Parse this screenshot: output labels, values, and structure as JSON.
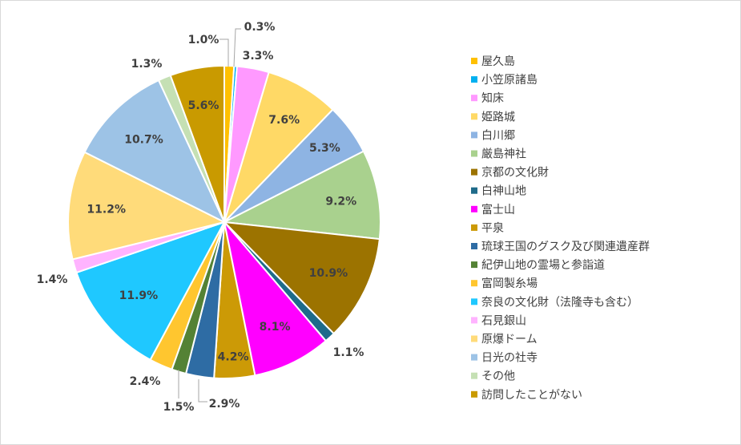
{
  "chart_data": {
    "type": "pie",
    "title": "",
    "legend_position": "right",
    "start_angle_deg": 0,
    "direction": "clockwise",
    "slices": [
      {
        "label": "屋久島",
        "value": 1.0,
        "display": "1.0%",
        "color": "#FFC000"
      },
      {
        "label": "小笠原諸島",
        "value": 0.3,
        "display": "0.3%",
        "color": "#00B0F0"
      },
      {
        "label": "知床",
        "value": 3.3,
        "display": "3.3%",
        "color": "#FF99FF"
      },
      {
        "label": "姫路城",
        "value": 7.6,
        "display": "7.6%",
        "color": "#FFD966"
      },
      {
        "label": "白川郷",
        "value": 5.3,
        "display": "5.3%",
        "color": "#8EB4E3"
      },
      {
        "label": "厳島神社",
        "value": 9.2,
        "display": "9.2%",
        "color": "#A9D18E"
      },
      {
        "label": "京都の文化財",
        "value": 10.9,
        "display": "10.9%",
        "color": "#9C7300"
      },
      {
        "label": "白神山地",
        "value": 1.1,
        "display": "1.1%",
        "color": "#1F6B8A"
      },
      {
        "label": "富士山",
        "value": 8.1,
        "display": "8.1%",
        "color": "#FF00FF"
      },
      {
        "label": "平泉",
        "value": 4.2,
        "display": "4.2%",
        "color": "#CC9A06"
      },
      {
        "label": "琉球王国のグスク及び関連遺産群",
        "value": 2.9,
        "display": "2.9%",
        "color": "#2E6CA4"
      },
      {
        "label": "紀伊山地の霊場と参詣道",
        "value": 1.5,
        "display": "1.5%",
        "color": "#548235"
      },
      {
        "label": "富岡製糸場",
        "value": 2.4,
        "display": "2.4%",
        "color": "#FFC62F"
      },
      {
        "label": "奈良の文化財（法隆寺も含む）",
        "value": 11.9,
        "display": "11.9%",
        "color": "#1FC8FF"
      },
      {
        "label": "石見銀山",
        "value": 1.4,
        "display": "1.4%",
        "color": "#FFB3FF"
      },
      {
        "label": "原爆ドーム",
        "value": 11.2,
        "display": "11.2%",
        "color": "#FFDB7A"
      },
      {
        "label": "日光の社寺",
        "value": 10.7,
        "display": "10.7%",
        "color": "#9DC3E6"
      },
      {
        "label": "その他",
        "value": 1.3,
        "display": "1.3%",
        "color": "#C5E0B4"
      },
      {
        "label": "訪問したことがない",
        "value": 5.6,
        "display": "5.6%",
        "color": "#C99A00"
      }
    ]
  }
}
